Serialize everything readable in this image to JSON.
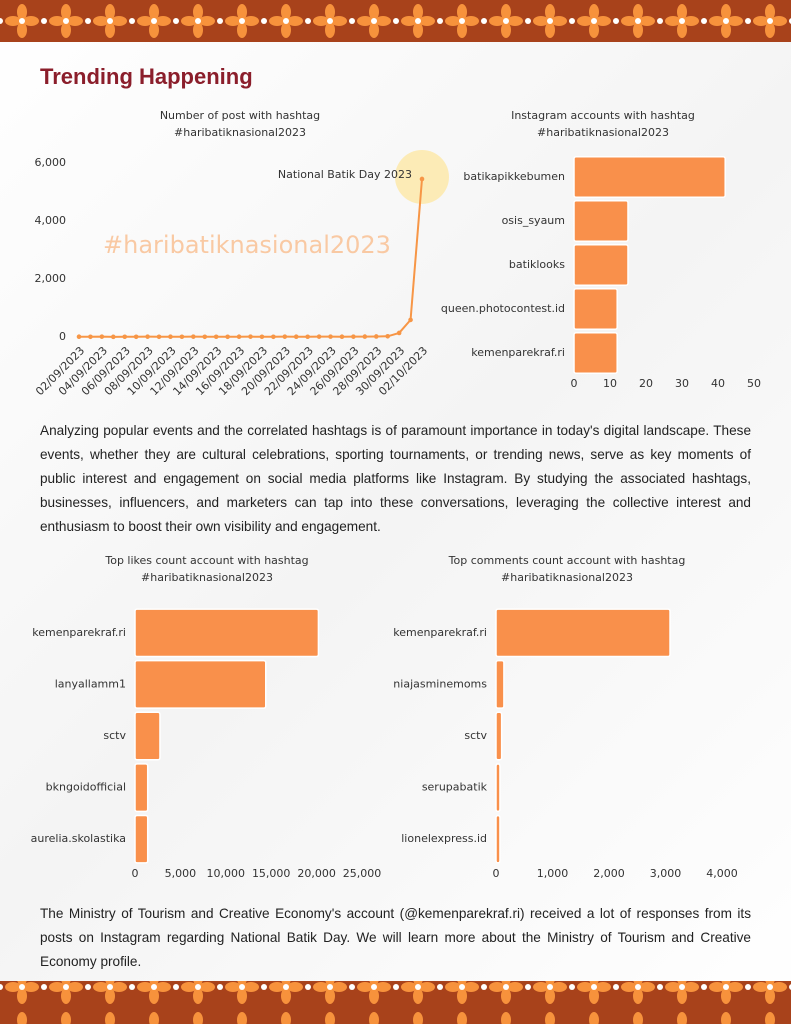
{
  "title": "Trending Happening",
  "paragraphs": [
    "Analyzing popular events and the correlated hashtags is of paramount importance in today's digital landscape. These events, whether they are cultural celebrations, sporting tournaments, or trending news, serve as key moments of public interest and engagement on social media platforms like Instagram. By studying the associated hashtags, businesses, influencers, and marketers can tap into these conversations, leveraging the collective interest and enthusiasm to boost their own visibility and engagement.",
    "The Ministry of Tourism and Creative Economy's account (@kemenparekraf.ri) received a lot of responses from its posts on Instagram regarding National Batik Day. We will learn more about the Ministry of Tourism and Creative Economy profile."
  ],
  "chart_data": [
    {
      "type": "line",
      "title": [
        "Number of post with hashtag",
        "#haribatiknasional2023"
      ],
      "annotation": "National Batik Day 2023",
      "watermark": "#haribatiknasional2023",
      "categories": [
        "02/09/2023",
        null,
        "04/09/2023",
        null,
        "06/09/2023",
        null,
        "08/09/2023",
        null,
        "10/09/2023",
        null,
        "12/09/2023",
        null,
        "14/09/2023",
        null,
        "16/09/2023",
        null,
        "18/09/2023",
        null,
        "20/09/2023",
        null,
        "22/09/2023",
        null,
        "24/09/2023",
        null,
        "26/09/2023",
        null,
        "28/09/2023",
        null,
        "30/09/2023",
        null,
        "02/10/2023"
      ],
      "values": [
        10,
        8,
        12,
        6,
        9,
        7,
        11,
        8,
        10,
        9,
        12,
        7,
        9,
        8,
        10,
        11,
        9,
        8,
        12,
        10,
        9,
        11,
        13,
        10,
        12,
        15,
        18,
        25,
        140,
        590,
        5450
      ],
      "color": "#f79646",
      "ylim": [
        0,
        6000
      ],
      "yticks": [
        0,
        {
          "value": 2000,
          "label": "2,000"
        },
        {
          "value": 4000,
          "label": "4,000"
        },
        {
          "value": 6000,
          "label": "6,000"
        }
      ]
    },
    {
      "type": "hbar",
      "title": [
        "Instagram accounts with hashtag",
        "#haribatiknasional2023"
      ],
      "categories": [
        "batikapikkebumen",
        "osis_syaum",
        "batiklooks",
        "queen.photocontest.id",
        "kemenparekraf.ri"
      ],
      "values": [
        42,
        15,
        15,
        12,
        12
      ],
      "color": "#f9904b",
      "xlim": [
        0,
        50
      ],
      "xticks": [
        0,
        10,
        20,
        30,
        40,
        50
      ]
    },
    {
      "type": "hbar",
      "title": [
        "Top likes count account with hashtag",
        "#haribatiknasional2023"
      ],
      "categories": [
        "kemenparekraf.ri",
        "lanyallamm1",
        "sctv",
        "bkngoidofficial",
        "aurelia.skolastika"
      ],
      "values": [
        20200,
        14400,
        2750,
        1400,
        1400
      ],
      "color": "#f9904b",
      "xlim": [
        0,
        25000
      ],
      "xticks": [
        0,
        {
          "value": 5000,
          "label": "5,000"
        },
        {
          "value": 10000,
          "label": "10,000"
        },
        {
          "value": 15000,
          "label": "15,000"
        },
        {
          "value": 20000,
          "label": "20,000"
        },
        {
          "value": 25000,
          "label": "25,000"
        }
      ]
    },
    {
      "type": "hbar",
      "title": [
        "Top comments count account with hashtag",
        "#haribatiknasional2023"
      ],
      "categories": [
        "kemenparekraf.ri",
        "niajasminemoms",
        "sctv",
        "serupabatik",
        "lionelexpress.id"
      ],
      "values": [
        3080,
        140,
        100,
        70,
        70
      ],
      "color": "#f9904b",
      "xlim": [
        0,
        4000
      ],
      "xticks": [
        0,
        {
          "value": 1000,
          "label": "1,000"
        },
        {
          "value": 2000,
          "label": "2,000"
        },
        {
          "value": 3000,
          "label": "3,000"
        },
        {
          "value": 4000,
          "label": "4,000"
        }
      ]
    }
  ]
}
